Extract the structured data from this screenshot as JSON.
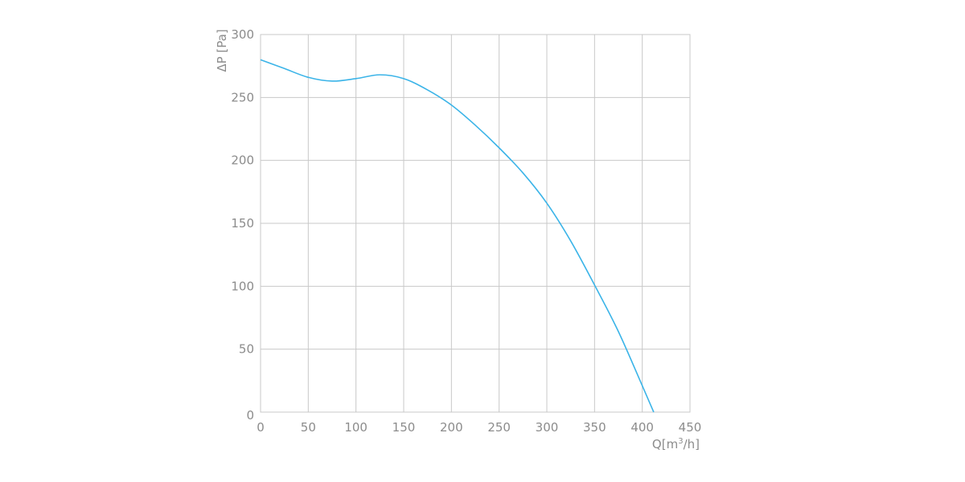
{
  "chart_data": {
    "type": "line",
    "xlabel": "Q[m³/h]",
    "xlabel_main": "Q[m",
    "xlabel_sup": "3",
    "xlabel_tail": "/h]",
    "ylabel": "ΔP [Pa]",
    "xlim": [
      0,
      450
    ],
    "ylim": [
      0,
      300
    ],
    "x_ticks": [
      "0",
      "50",
      "100",
      "150",
      "200",
      "250",
      "300",
      "350",
      "400",
      "450"
    ],
    "y_ticks": [
      "0",
      "50",
      "100",
      "150",
      "200",
      "250",
      "300"
    ],
    "grid": true,
    "colors": {
      "line": "#3bb4e8",
      "grid": "#c8c8c8",
      "text": "#8c8c8c"
    },
    "series": [
      {
        "x": [
          0,
          25,
          50,
          75,
          100,
          125,
          150,
          175,
          200,
          225,
          250,
          275,
          300,
          325,
          350,
          375,
          400,
          412
        ],
        "y": [
          280,
          273,
          266,
          263,
          265,
          268,
          265,
          256,
          244,
          228,
          210,
          190,
          166,
          136,
          101,
          64,
          21,
          0
        ]
      }
    ]
  }
}
